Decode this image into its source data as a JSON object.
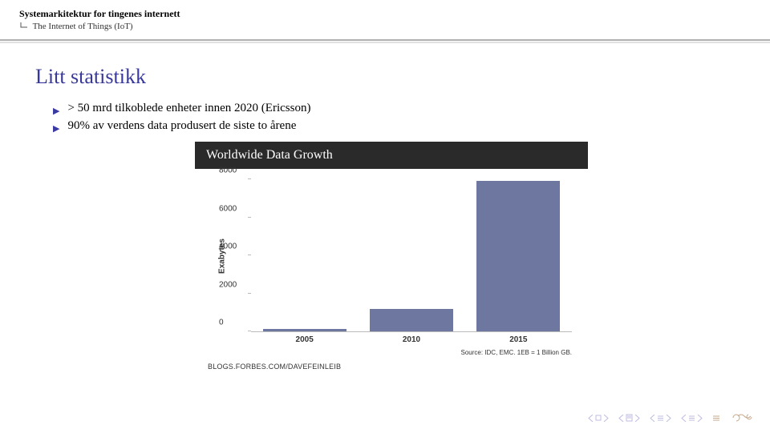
{
  "header": {
    "title": "Systemarkitektur for tingenes internett",
    "subtitle": "The Internet of Things (IoT)"
  },
  "slide": {
    "title": "Litt statistikk",
    "bullets": [
      "> 50 mrd tilkoblede enheter innen 2020 (Ericsson)",
      "90% av verdens data produsert de siste to årene"
    ]
  },
  "chart": {
    "type": "bar",
    "header": "Worldwide Data Growth",
    "ylabel": "Exabytes",
    "ylim": [
      0,
      8000
    ],
    "ytick_step": 2000,
    "yticks": [
      0,
      2000,
      4000,
      6000,
      8000
    ],
    "categories": [
      "2005",
      "2010",
      "2015"
    ],
    "values": [
      130,
      1200,
      7900
    ],
    "bar_color": "#6d77a0",
    "axis_color": "#bbbbbb",
    "background_color": "#ffffff",
    "label_fontsize": 10,
    "source": "Source: IDC, EMC. 1EB = 1 Billion GB.",
    "blog": "BLOGS.FORBES.COM/DAVEFEINLEIB"
  },
  "nav": {
    "accent": "#b8b8d8",
    "undo_color": "#c6a88a"
  }
}
